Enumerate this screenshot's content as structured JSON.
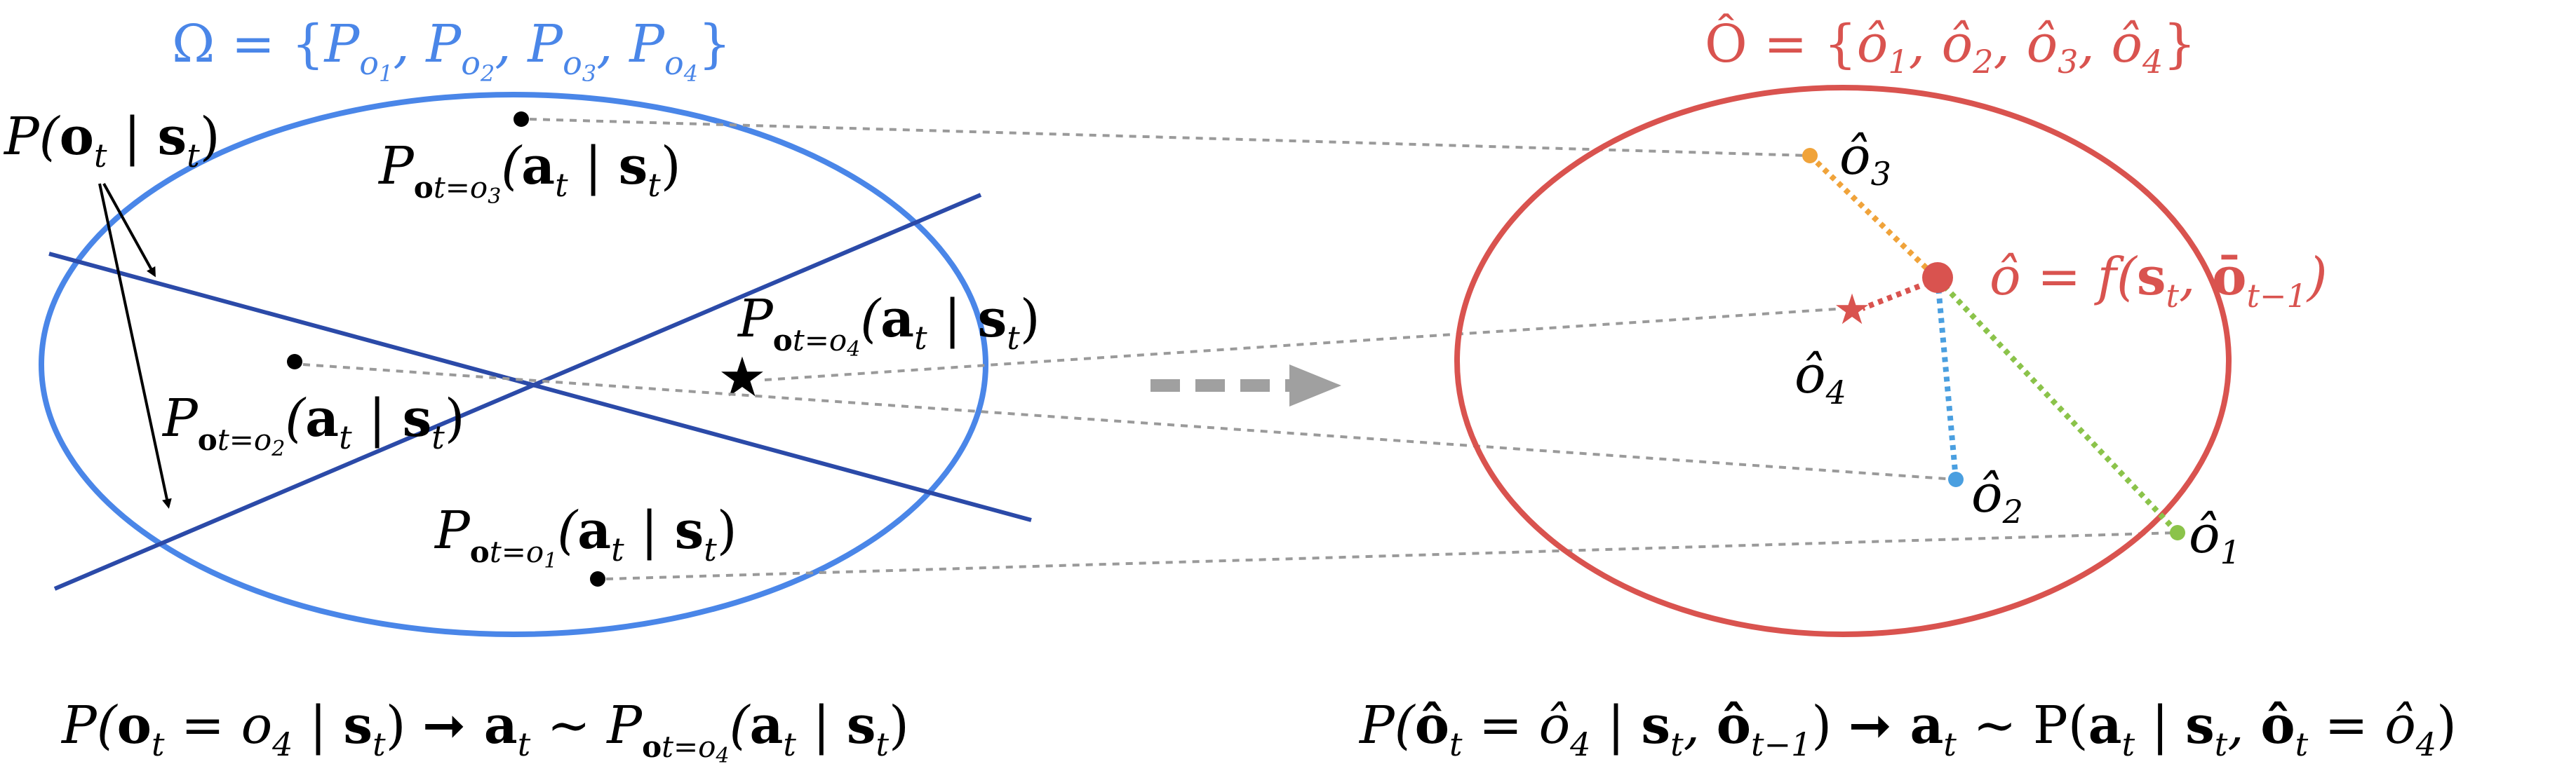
{
  "left_set": {
    "label": "Ω = {P",
    "subs": [
      "o1",
      "o2",
      "o3",
      "o4"
    ],
    "color": "#4a86e8"
  },
  "right_set": {
    "label": "Ô = {ô1, ô2, ô3, ô4}",
    "color": "#d9534f"
  },
  "left_labels": {
    "obs_prior": "P(o_t | s_t)",
    "policy_o1": "P_{o_t=o_1}(a_t | s_t)",
    "policy_o2": "P_{o_t=o_2}(a_t | s_t)",
    "policy_o3": "P_{o_t=o_3}(a_t | s_t)",
    "policy_o4": "P_{o_t=o_4}(a_t | s_t)"
  },
  "right_labels": {
    "o1": "ô1",
    "o2": "ô2",
    "o3": "ô3",
    "o4": "ô4",
    "predict": "ô = f(s_t, ō_{t−1})"
  },
  "bottom_formulas": {
    "left": "P(o_t = o_4 | s_t) → a_t ~ P_{o_t=o_4}(a_t | s_t)",
    "right": "P(ô_t = ô_4 | s_t, ô_{t−1}) → a_t ~ P(a_t | s_t, ô_t = ô_4)"
  },
  "colors": {
    "blue_ellipse": "#4a86e8",
    "red_ellipse": "#d9534f",
    "dark_lines": "#2b4aa8",
    "o1_dot": "#8bc34a",
    "o2_dot": "#4a9fe0",
    "o3_dot": "#f0a33a",
    "arrow_gray": "#a0a0a0"
  }
}
